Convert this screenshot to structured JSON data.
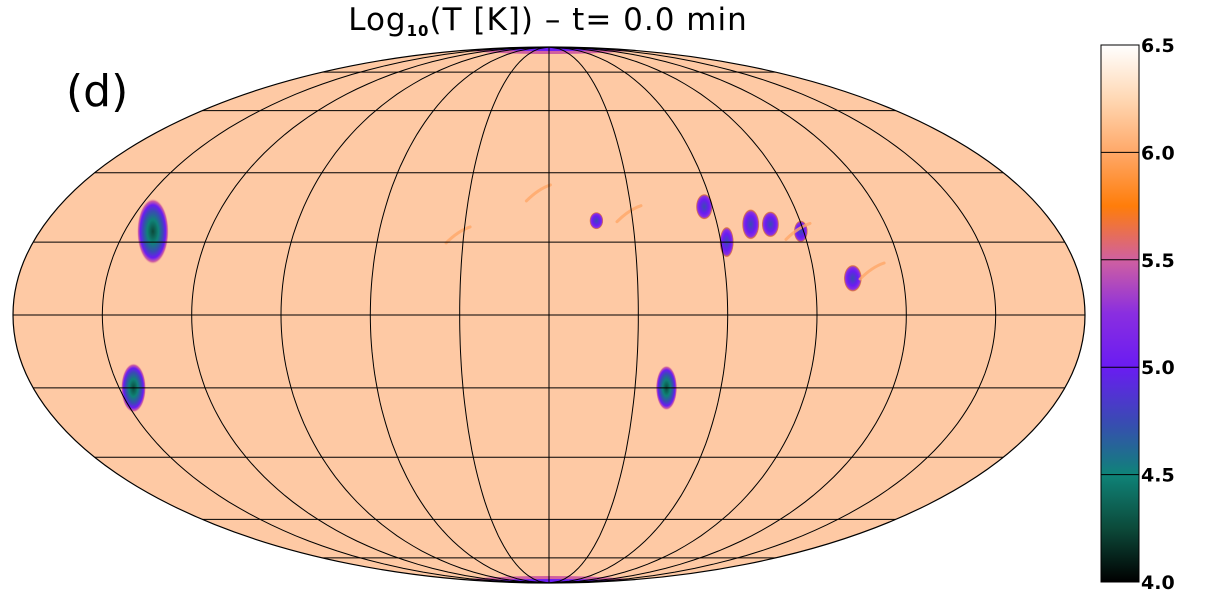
{
  "figure": {
    "title_pre": "Log",
    "title_sub": "10",
    "title_post": "(T [K]) – t=  0.0 min",
    "panel_label": "(d)"
  },
  "chart_data": {
    "type": "heatmap",
    "projection": "mollweide",
    "quantity": "Log10(T [K])",
    "time_min": 0.0,
    "background_value": 6.2,
    "graticule": {
      "meridians_deg": [
        -180,
        -150,
        -120,
        -90,
        -60,
        -30,
        0,
        30,
        60,
        90,
        120,
        150,
        180
      ],
      "parallels_deg": [
        -75,
        -60,
        -40,
        -20,
        0,
        20,
        40,
        60,
        75
      ]
    },
    "colorbar": {
      "min": 4.0,
      "max": 6.5,
      "ticks": [
        "4.0",
        "4.5",
        "5.0",
        "5.5",
        "6.0",
        "6.5"
      ],
      "tick_values": [
        4.0,
        4.5,
        5.0,
        5.5,
        6.0,
        6.5
      ],
      "colors": [
        "#000000",
        "#0c4a3a",
        "#0f8378",
        "#3a4ab4",
        "#6a1cf2",
        "#8a2ee0",
        "#d060a0",
        "#ff7d0a",
        "#ffa868",
        "#ffd8b4",
        "#ffffff"
      ]
    },
    "cool_regions": [
      {
        "name": "region-1",
        "lon": -140,
        "lat": 23,
        "rx": 4.5,
        "ry": 7.5,
        "min_value": 4.4
      },
      {
        "name": "region-2",
        "lon": -145,
        "lat": -20,
        "rx": 3.5,
        "ry": 5.5,
        "min_value": 4.6
      },
      {
        "name": "region-3",
        "lon": 41,
        "lat": -20,
        "rx": 3.0,
        "ry": 5.0,
        "min_value": 4.5
      },
      {
        "name": "region-4",
        "lon": 17,
        "lat": 26,
        "rx": 2.0,
        "ry": 2.0,
        "min_value": 5.3
      },
      {
        "name": "region-5",
        "lon": 57,
        "lat": 30,
        "rx": 2.5,
        "ry": 3.0,
        "min_value": 5.2
      },
      {
        "name": "region-6",
        "lon": 62,
        "lat": 20,
        "rx": 2.0,
        "ry": 3.5,
        "min_value": 5.1
      },
      {
        "name": "region-7",
        "lon": 72,
        "lat": 25,
        "rx": 2.5,
        "ry": 3.5,
        "min_value": 5.0
      },
      {
        "name": "region-8",
        "lon": 79,
        "lat": 25,
        "rx": 2.5,
        "ry": 3.0,
        "min_value": 5.0
      },
      {
        "name": "region-9",
        "lon": 89,
        "lat": 23,
        "rx": 2.0,
        "ry": 2.5,
        "min_value": 5.0
      },
      {
        "name": "region-10",
        "lon": 103,
        "lat": 10,
        "rx": 2.5,
        "ry": 3.0,
        "min_value": 5.0
      }
    ],
    "warm_streaks": [
      {
        "name": "streak-1",
        "lon": -32,
        "lat": 22,
        "value": 6.0
      },
      {
        "name": "streak-2",
        "lon": -4,
        "lat": 34,
        "value": 6.0
      },
      {
        "name": "streak-3",
        "lon": 29,
        "lat": 28,
        "value": 5.9
      },
      {
        "name": "streak-4",
        "lon": 88,
        "lat": 23,
        "value": 5.9
      },
      {
        "name": "streak-5",
        "lon": 110,
        "lat": 12,
        "value": 5.9
      }
    ],
    "polar_caps": [
      {
        "name": "north-cap",
        "lat": 90,
        "value": 5.6
      },
      {
        "name": "south-cap",
        "lat": -90,
        "value": 5.6
      }
    ]
  }
}
